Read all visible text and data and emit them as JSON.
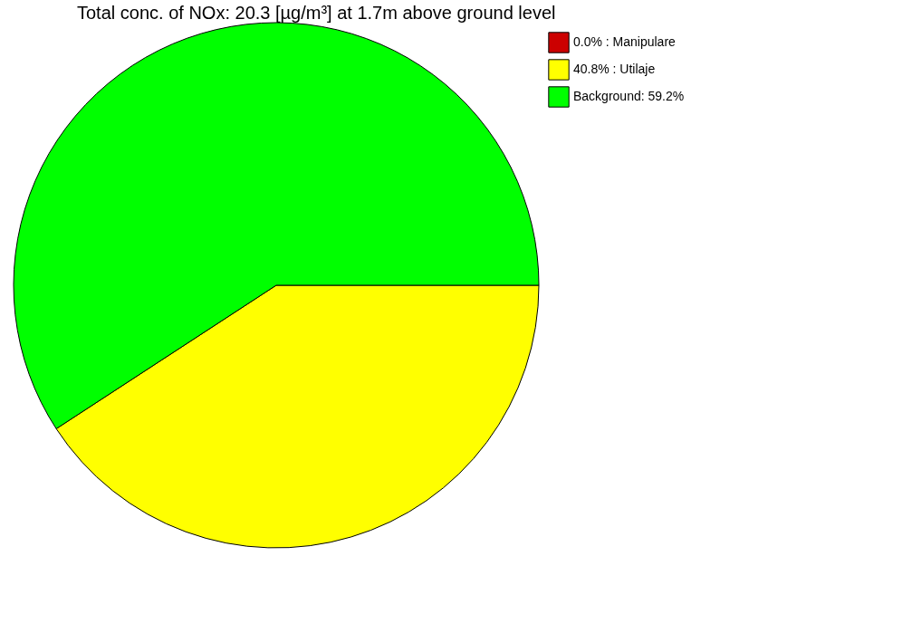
{
  "chart_data": {
    "type": "pie",
    "title": "Total conc. of NOx: 20.3 [µg/m³] at 1.7m above ground level",
    "categories": [
      "0.0% : Manipulare",
      "40.8% : Utilaje",
      "Background: 59.2%"
    ],
    "values": [
      0.0,
      40.8,
      59.2
    ],
    "colors": [
      "#cc0000",
      "#ffff00",
      "#00ff00"
    ],
    "legend": "top right"
  }
}
